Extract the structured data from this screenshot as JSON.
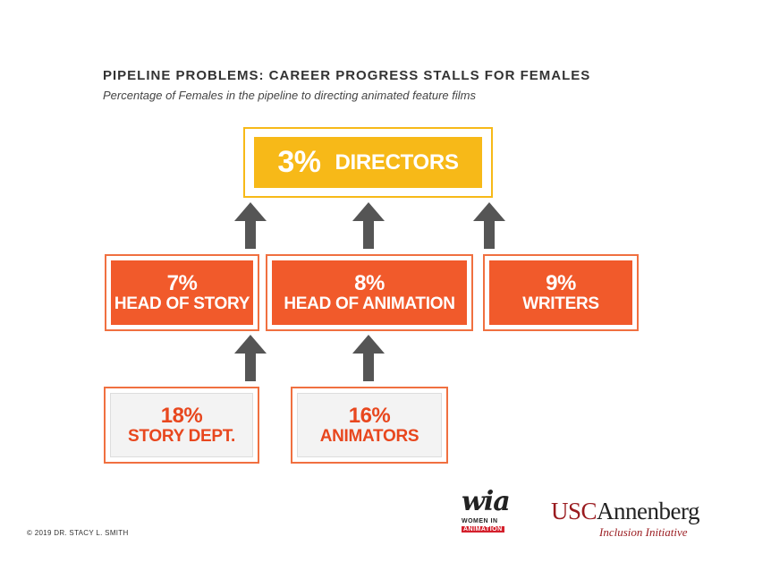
{
  "header": {
    "title": "PIPELINE PROBLEMS: CAREER PROGRESS STALLS FOR FEMALES",
    "subtitle": "Percentage of Females in the pipeline to directing animated feature films"
  },
  "top": {
    "pct": "3%",
    "label": "DIRECTORS"
  },
  "middle": [
    {
      "pct": "7%",
      "label": "HEAD OF STORY"
    },
    {
      "pct": "8%",
      "label": "HEAD OF ANIMATION"
    },
    {
      "pct": "9%",
      "label": "WRITERS"
    }
  ],
  "bottom": [
    {
      "pct": "18%",
      "label": "STORY DEPT."
    },
    {
      "pct": "16%",
      "label": "ANIMATORS"
    }
  ],
  "footer": {
    "copyright": "© 2019 DR. STACY L. SMITH",
    "wia_mark": "wia",
    "wia_line1": "WOMEN IN",
    "wia_line2": "ANIMATION",
    "usc_part1": "USC",
    "usc_part2": "Annenberg",
    "usc_sub": "Inclusion Initiative"
  },
  "colors": {
    "orange": "#f15a2b",
    "gold": "#f7b918",
    "arrow": "#555555"
  }
}
